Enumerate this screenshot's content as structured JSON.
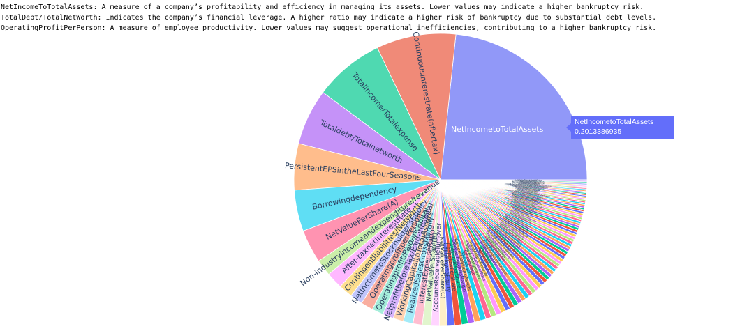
{
  "notes": [
    "NetIncomeToTotalAssets: A measure of a company’s profitability and efficiency in managing its assets. Lower values may indicate a higher bankruptcy risk.",
    "TotalDebt/TotalNetWorth: Indicates the company’s financial leverage. A higher ratio may indicate a higher risk of bankruptcy due to substantial debt levels.",
    "OperatingProfitPerPerson: A measure of employee productivity. Lower values may suggest operational inefficiencies, contributing to a higher bankruptcy risk."
  ],
  "tooltip": {
    "label": "NetIncometoTotalAssets",
    "value": "0.2013386935"
  },
  "chart_data": {
    "type": "pie",
    "direction": "counterclockwise",
    "rotation_deg": 0,
    "colors_cycle": [
      "#636efa",
      "#ef553b",
      "#00cc96",
      "#ab63fa",
      "#ffa15a",
      "#19d3f3",
      "#ff6692",
      "#b6e880",
      "#ff97ff",
      "#fecb52"
    ],
    "slices": [
      {
        "label": "NetIncometoTotalAssets",
        "value": 0.2013386935,
        "color": "#9198f8"
      },
      {
        "label": "Continuousinterestrate(aftertax)",
        "value": 0.0757,
        "color": "#f08a78"
      },
      {
        "label": "Totalincome/Totalexpense",
        "value": 0.0666,
        "color": "#4fd9b1"
      },
      {
        "label": "Totaldebt/Totalnetworth",
        "value": 0.0535,
        "color": "#c592f8"
      },
      {
        "label": "PersistentEPSintheLastFourSeasons",
        "value": 0.0443,
        "color": "#ffbd8c"
      },
      {
        "label": "Borrowingdependency",
        "value": 0.0393,
        "color": "#5fdef4"
      },
      {
        "label": "NetValuePerShare(A)",
        "value": 0.0318,
        "color": "#ff93b1"
      },
      {
        "label": "Non-industryincomeandexpenditure/revenue",
        "value": 0.0157,
        "color": "#cbefa9"
      },
      {
        "label": "After-taxnetInterestRate",
        "value": 0.0157,
        "color": "#ffb8ff"
      },
      {
        "label": "Contingentliabilities/Networth",
        "value": 0.0133,
        "color": "#ffdf8f"
      },
      {
        "label": "NetIncometoStockholder'sEquity",
        "value": 0.0121,
        "color": "#c2c6fc"
      },
      {
        "label": "OperatingprofitperPerson",
        "value": 0.0116,
        "color": "#f9aea0"
      },
      {
        "label": "Operatingprofit/Paid-incapital",
        "value": 0.011,
        "color": "#a6eedb"
      },
      {
        "label": "NetprofitbeforeTax/Paid-incapital",
        "value": 0.0104,
        "color": "#d8b4fc"
      },
      {
        "label": "WorkingCapitaltoTotalAssets",
        "value": 0.0098,
        "color": "#ffd2b0"
      },
      {
        "label": "RealizedSalesGrossMargin",
        "value": 0.0093,
        "color": "#a3ebf8"
      },
      {
        "label": "InterestExpenseRatio",
        "value": 0.0088,
        "color": "#ffbdd0"
      },
      {
        "label": "NetValuePerShare(B)",
        "value": 0.0083,
        "color": "#e1f5cd"
      },
      {
        "label": "AccountsReceivableTurnover",
        "value": 0.0078,
        "color": "#ffd4ff"
      },
      {
        "label": "NetValuePerShare(C)",
        "value": 0.0074,
        "color": "#fff0c7"
      },
      {
        "label": "CashFlowtoEquity",
        "value": 0.007,
        "color": "#636efa"
      },
      {
        "label": "CashFlowPerShare",
        "value": 0.0066,
        "color": "#ef553b"
      },
      {
        "label": "RevenuePerShare",
        "value": 0.0063,
        "color": "#00cc96"
      },
      {
        "label": "OperatingGrossMargin",
        "value": 0.006,
        "color": "#ab63fa"
      },
      {
        "label": "CurrentLiabilitytoAssets",
        "value": 0.0057,
        "color": "#ffa15a"
      },
      {
        "label": "QuickRatio",
        "value": 0.0055,
        "color": "#19d3f3"
      },
      {
        "label": "CurrentRatio",
        "value": 0.0053,
        "color": "#ff6692"
      },
      {
        "label": "TotalAssetTurnover",
        "value": 0.0051,
        "color": "#b6e880"
      },
      {
        "label": "InventoryTurnoverRate",
        "value": 0.0049,
        "color": "#ff97ff"
      },
      {
        "label": "FixedAssetsTurnover",
        "value": 0.0047,
        "color": "#fecb52"
      },
      {
        "label": "CashTurnoverRate",
        "value": 0.0046,
        "color": "#636efa"
      },
      {
        "label": "TaxRate(A)",
        "value": 0.0045,
        "color": "#ef553b"
      },
      {
        "label": "DebtRatio",
        "value": 0.0044,
        "color": "#00cc96"
      },
      {
        "label": "NetWorth/Assets",
        "value": 0.0043,
        "color": "#ab63fa"
      },
      {
        "label": "LongtermLiabilitytoCurrentAssets",
        "value": 0.0042,
        "color": "#ffa15a"
      },
      {
        "label": "EquitytoLiability",
        "value": 0.0041,
        "color": "#19d3f3"
      },
      {
        "label": "CashFlowtoLiability",
        "value": 0.004,
        "color": "#ff6692"
      },
      {
        "label": "CashFlowtoSales",
        "value": 0.0039,
        "color": "#b6e880"
      },
      {
        "label": "QuickAssets/TotalAssets",
        "value": 0.0038,
        "color": "#ff97ff"
      },
      {
        "label": "CurrentAssets/TotalAssets",
        "value": 0.0037,
        "color": "#fecb52"
      },
      {
        "label": "Cash/TotalAssets",
        "value": 0.0036,
        "color": "#636efa"
      },
      {
        "label": "QuickAssets/CurrentLiability",
        "value": 0.0035,
        "color": "#ef553b"
      },
      {
        "label": "Cash/CurrentLiability",
        "value": 0.0034,
        "color": "#00cc96"
      },
      {
        "label": "Inventory/WorkingCapital",
        "value": 0.0033,
        "color": "#ab63fa"
      },
      {
        "label": "Inventory/CurrentLiability",
        "value": 0.0032,
        "color": "#ffa15a"
      },
      {
        "label": "CurrentLiabilities/Liability",
        "value": 0.0031,
        "color": "#19d3f3"
      },
      {
        "label": "WorkingCapital/Equity",
        "value": 0.003,
        "color": "#ff6692"
      },
      {
        "label": "CurrentLiabilities/Equity",
        "value": 0.003,
        "color": "#b6e880"
      },
      {
        "label": "LongtermLiabilitytoEquity",
        "value": 0.0029,
        "color": "#ff97ff"
      },
      {
        "label": "RetainedEarningstoTotalAssets",
        "value": 0.0029,
        "color": "#fecb52"
      },
      {
        "label": "TotalincometoTotalAssets",
        "value": 0.0028,
        "color": "#636efa"
      },
      {
        "label": "TotalexpensetoAssets",
        "value": 0.0028,
        "color": "#ef553b"
      },
      {
        "label": "CurrentAssetTurnoverRate",
        "value": 0.0027,
        "color": "#00cc96"
      },
      {
        "label": "QuickAssetTurnoverRate",
        "value": 0.0027,
        "color": "#ab63fa"
      },
      {
        "label": "WorkingcapitalTurnoverRate",
        "value": 0.0026,
        "color": "#ffa15a"
      },
      {
        "label": "Cashflowrate",
        "value": 0.0026,
        "color": "#19d3f3"
      },
      {
        "label": "CashFlowtoTotalAssets",
        "value": 0.0025,
        "color": "#ff6692"
      },
      {
        "label": "CashFlowtoEquity(B)",
        "value": 0.0025,
        "color": "#b6e880"
      },
      {
        "label": "CurrentLiabilitytoCurrentAssets",
        "value": 0.0024,
        "color": "#ff97ff"
      },
      {
        "label": "LiabilityAssetsFlag",
        "value": 0.0024,
        "color": "#fecb52"
      },
      {
        "label": "NetIncomeFlag",
        "value": 0.0023,
        "color": "#636efa"
      },
      {
        "label": "TotalAssetGrowthRate",
        "value": 0.0023,
        "color": "#ef553b"
      },
      {
        "label": "NetValueGrowthRate",
        "value": 0.0022,
        "color": "#00cc96"
      },
      {
        "label": "TotalAssetReturnGrowthRateRatio",
        "value": 0.0022,
        "color": "#ab63fa"
      },
      {
        "label": "CashReinvestment%",
        "value": 0.0021,
        "color": "#ffa15a"
      },
      {
        "label": "DegreeofFinancialLeverage(DFL)",
        "value": 0.0021,
        "color": "#19d3f3"
      },
      {
        "label": "InterestCoverageRatio",
        "value": 0.002,
        "color": "#ff6692"
      },
      {
        "label": "ResearchandDevelopmentExpenseRate",
        "value": 0.002,
        "color": "#b6e880"
      },
      {
        "label": "OperatingExpenseRate",
        "value": 0.0019,
        "color": "#ff97ff"
      },
      {
        "label": "InterestbearingDebtInterestRate",
        "value": 0.0019,
        "color": "#fecb52"
      },
      {
        "label": "NetIncomeGrowthRate",
        "value": 0.0018,
        "color": "#636efa"
      },
      {
        "label": "OperatingProfitGrowthRate",
        "value": 0.0018,
        "color": "#ef553b"
      },
      {
        "label": "After-taxNetProfitGrowthRate",
        "value": 0.0017,
        "color": "#00cc96"
      },
      {
        "label": "RegularNetProfitGrowthRate",
        "value": 0.0017,
        "color": "#ab63fa"
      },
      {
        "label": "ContinuousNetProfitGrowthRate",
        "value": 0.0016,
        "color": "#ffa15a"
      },
      {
        "label": "AverageCollectionDays",
        "value": 0.0016,
        "color": "#19d3f3"
      },
      {
        "label": "InventoryandaccountsreceivabletoNetvalue",
        "value": 0.0015,
        "color": "#ff6692"
      },
      {
        "label": "Allocationrateperperson",
        "value": 0.0015,
        "color": "#b6e880"
      },
      {
        "label": "Revenueperperson",
        "value": 0.0014,
        "color": "#ff97ff"
      },
      {
        "label": "Fixedassetstoassets",
        "value": 0.0014,
        "color": "#fecb52"
      },
      {
        "label": "Currentliabilitytoliability",
        "value": 0.0013,
        "color": "#636efa"
      },
      {
        "label": "Currentliabilitytoequity",
        "value": 0.0013,
        "color": "#ef553b"
      },
      {
        "label": "Equitytolong-termliability",
        "value": 0.0012,
        "color": "#00cc96"
      },
      {
        "label": "NoncurrentassetsturnoverRate",
        "value": 0.0012,
        "color": "#ab63fa"
      },
      {
        "label": "ROA(C)beforeinterestanddepreciation",
        "value": 0.0012,
        "color": "#ffa15a"
      },
      {
        "label": "ROA(A)beforeinterestand%aftertax",
        "value": 0.0011,
        "color": "#19d3f3"
      },
      {
        "label": "ROA(B)beforeinterestanddepreciationaftertax",
        "value": 0.0011,
        "color": "#ff6692"
      },
      {
        "label": "OperatingProfitRate",
        "value": 0.0011,
        "color": "#b6e880"
      },
      {
        "label": "Pre-taxnetInterestRate",
        "value": 0.001,
        "color": "#ff97ff"
      },
      {
        "label": "Tax-freecontributionsperperson",
        "value": 0.001,
        "color": "#fecb52"
      },
      {
        "label": "Grossprofittosales",
        "value": 0.001,
        "color": "#636efa"
      },
      {
        "label": "Netincometostockholdersequity",
        "value": 0.0009,
        "color": "#ef553b"
      },
      {
        "label": "Liabilitytoequity",
        "value": 0.0009,
        "color": "#00cc96"
      },
      {
        "label": "Degreeoffinancialleverage",
        "value": 0.0009,
        "color": "#ab63fa"
      },
      {
        "label": "Interestcoverageratio",
        "value": 0.0008,
        "color": "#ffa15a"
      }
    ]
  }
}
